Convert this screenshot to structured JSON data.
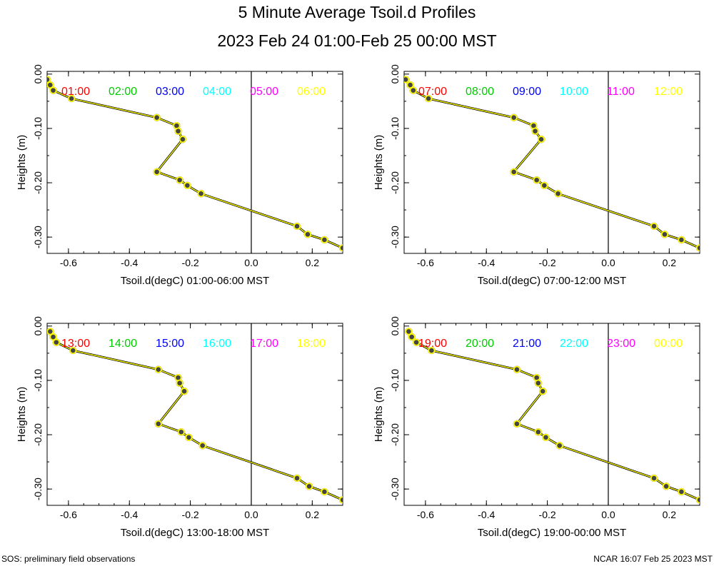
{
  "title": "5 Minute Average Tsoil.d Profiles",
  "subtitle": "2023 Feb 24 01:00-Feb 25 00:00 MST",
  "footer": {
    "left": "SOS: preliminary field observations",
    "right": "NCAR 16:07 Feb 25 2023 MST"
  },
  "colors": {
    "series": [
      "#ff0000",
      "#00cc00",
      "#0000ff",
      "#00ffff",
      "#ff00ff",
      "#ffff00"
    ],
    "marker_fill": "#444444",
    "zero_line": "#000000"
  },
  "chart_data": [
    {
      "type": "line",
      "xlabel": "Tsoil.d(degC) 01:00-06:00 MST",
      "ylabel": "Heights (m)",
      "xlim": [
        -0.67,
        0.3
      ],
      "ylim": [
        -0.33,
        0.005
      ],
      "xticks": [
        "-0.6",
        "-0.4",
        "-0.2",
        "0.0",
        "0.2"
      ],
      "yticks": [
        "0.00",
        "-0.10",
        "-0.20",
        "-0.30"
      ],
      "series": [
        {
          "name": "01:00",
          "x": [
            -0.67,
            -0.66,
            -0.65,
            -0.59,
            -0.31,
            -0.245,
            -0.24,
            -0.225,
            -0.31,
            -0.235,
            -0.21,
            -0.165,
            0.15,
            0.185,
            0.24,
            0.3
          ],
          "y": [
            -0.01,
            -0.02,
            -0.03,
            -0.045,
            -0.08,
            -0.095,
            -0.105,
            -0.12,
            -0.18,
            -0.195,
            -0.205,
            -0.22,
            -0.28,
            -0.295,
            -0.305,
            -0.32
          ]
        },
        {
          "name": "02:00",
          "x": [
            -0.67,
            -0.66,
            -0.65,
            -0.59,
            -0.31,
            -0.245,
            -0.24,
            -0.225,
            -0.31,
            -0.235,
            -0.21,
            -0.165,
            0.15,
            0.185,
            0.24,
            0.3
          ],
          "y": [
            -0.01,
            -0.02,
            -0.03,
            -0.045,
            -0.08,
            -0.095,
            -0.105,
            -0.12,
            -0.18,
            -0.195,
            -0.205,
            -0.22,
            -0.28,
            -0.295,
            -0.305,
            -0.32
          ]
        },
        {
          "name": "03:00",
          "x": [
            -0.67,
            -0.66,
            -0.65,
            -0.59,
            -0.31,
            -0.245,
            -0.24,
            -0.225,
            -0.31,
            -0.235,
            -0.21,
            -0.165,
            0.15,
            0.185,
            0.24,
            0.3
          ],
          "y": [
            -0.01,
            -0.02,
            -0.03,
            -0.045,
            -0.08,
            -0.095,
            -0.105,
            -0.12,
            -0.18,
            -0.195,
            -0.205,
            -0.22,
            -0.28,
            -0.295,
            -0.305,
            -0.32
          ]
        },
        {
          "name": "04:00",
          "x": [
            -0.67,
            -0.66,
            -0.65,
            -0.59,
            -0.31,
            -0.245,
            -0.24,
            -0.225,
            -0.31,
            -0.235,
            -0.21,
            -0.165,
            0.15,
            0.185,
            0.24,
            0.3
          ],
          "y": [
            -0.01,
            -0.02,
            -0.03,
            -0.045,
            -0.08,
            -0.095,
            -0.105,
            -0.12,
            -0.18,
            -0.195,
            -0.205,
            -0.22,
            -0.28,
            -0.295,
            -0.305,
            -0.32
          ]
        },
        {
          "name": "05:00",
          "x": [
            -0.67,
            -0.66,
            -0.65,
            -0.59,
            -0.31,
            -0.245,
            -0.24,
            -0.225,
            -0.31,
            -0.235,
            -0.21,
            -0.165,
            0.15,
            0.185,
            0.24,
            0.3
          ],
          "y": [
            -0.01,
            -0.02,
            -0.03,
            -0.045,
            -0.08,
            -0.095,
            -0.105,
            -0.12,
            -0.18,
            -0.195,
            -0.205,
            -0.22,
            -0.28,
            -0.295,
            -0.305,
            -0.32
          ]
        },
        {
          "name": "06:00",
          "x": [
            -0.67,
            -0.66,
            -0.65,
            -0.59,
            -0.31,
            -0.245,
            -0.24,
            -0.225,
            -0.31,
            -0.235,
            -0.21,
            -0.165,
            0.15,
            0.185,
            0.24,
            0.3
          ],
          "y": [
            -0.01,
            -0.02,
            -0.03,
            -0.045,
            -0.08,
            -0.095,
            -0.105,
            -0.12,
            -0.18,
            -0.195,
            -0.205,
            -0.22,
            -0.28,
            -0.295,
            -0.305,
            -0.32
          ]
        }
      ]
    },
    {
      "type": "line",
      "xlabel": "Tsoil.d(degC) 07:00-12:00 MST",
      "ylabel": "Heights (m)",
      "xlim": [
        -0.67,
        0.3
      ],
      "ylim": [
        -0.33,
        0.005
      ],
      "xticks": [
        "-0.6",
        "-0.4",
        "-0.2",
        "0.0",
        "0.2"
      ],
      "yticks": [
        "0.00",
        "-0.10",
        "-0.20",
        "-0.30"
      ],
      "series": [
        {
          "name": "07:00",
          "x": [
            -0.665,
            -0.65,
            -0.64,
            -0.59,
            -0.31,
            -0.245,
            -0.24,
            -0.22,
            -0.31,
            -0.235,
            -0.21,
            -0.165,
            0.15,
            0.185,
            0.24,
            0.3
          ],
          "y": [
            -0.01,
            -0.02,
            -0.03,
            -0.045,
            -0.08,
            -0.095,
            -0.105,
            -0.12,
            -0.18,
            -0.195,
            -0.205,
            -0.22,
            -0.28,
            -0.295,
            -0.305,
            -0.32
          ]
        },
        {
          "name": "08:00",
          "x": [
            -0.665,
            -0.65,
            -0.64,
            -0.59,
            -0.31,
            -0.245,
            -0.24,
            -0.22,
            -0.31,
            -0.235,
            -0.21,
            -0.165,
            0.15,
            0.185,
            0.24,
            0.3
          ],
          "y": [
            -0.01,
            -0.02,
            -0.03,
            -0.045,
            -0.08,
            -0.095,
            -0.105,
            -0.12,
            -0.18,
            -0.195,
            -0.205,
            -0.22,
            -0.28,
            -0.295,
            -0.305,
            -0.32
          ]
        },
        {
          "name": "09:00",
          "x": [
            -0.665,
            -0.65,
            -0.64,
            -0.59,
            -0.31,
            -0.245,
            -0.24,
            -0.22,
            -0.31,
            -0.235,
            -0.21,
            -0.165,
            0.15,
            0.185,
            0.24,
            0.3
          ],
          "y": [
            -0.01,
            -0.02,
            -0.03,
            -0.045,
            -0.08,
            -0.095,
            -0.105,
            -0.12,
            -0.18,
            -0.195,
            -0.205,
            -0.22,
            -0.28,
            -0.295,
            -0.305,
            -0.32
          ]
        },
        {
          "name": "10:00",
          "x": [
            -0.665,
            -0.65,
            -0.64,
            -0.59,
            -0.31,
            -0.245,
            -0.24,
            -0.22,
            -0.31,
            -0.235,
            -0.21,
            -0.165,
            0.15,
            0.185,
            0.24,
            0.3
          ],
          "y": [
            -0.01,
            -0.02,
            -0.03,
            -0.045,
            -0.08,
            -0.095,
            -0.105,
            -0.12,
            -0.18,
            -0.195,
            -0.205,
            -0.22,
            -0.28,
            -0.295,
            -0.305,
            -0.32
          ]
        },
        {
          "name": "11:00",
          "x": [
            -0.665,
            -0.65,
            -0.64,
            -0.59,
            -0.31,
            -0.245,
            -0.24,
            -0.22,
            -0.31,
            -0.235,
            -0.21,
            -0.165,
            0.15,
            0.185,
            0.24,
            0.3
          ],
          "y": [
            -0.01,
            -0.02,
            -0.03,
            -0.045,
            -0.08,
            -0.095,
            -0.105,
            -0.12,
            -0.18,
            -0.195,
            -0.205,
            -0.22,
            -0.28,
            -0.295,
            -0.305,
            -0.32
          ]
        },
        {
          "name": "12:00",
          "x": [
            -0.665,
            -0.65,
            -0.64,
            -0.59,
            -0.31,
            -0.245,
            -0.24,
            -0.22,
            -0.31,
            -0.235,
            -0.21,
            -0.165,
            0.15,
            0.185,
            0.24,
            0.3
          ],
          "y": [
            -0.01,
            -0.02,
            -0.03,
            -0.045,
            -0.08,
            -0.095,
            -0.105,
            -0.12,
            -0.18,
            -0.195,
            -0.205,
            -0.22,
            -0.28,
            -0.295,
            -0.305,
            -0.32
          ]
        }
      ]
    },
    {
      "type": "line",
      "xlabel": "Tsoil.d(degC) 13:00-18:00 MST",
      "ylabel": "Heights (m)",
      "xlim": [
        -0.67,
        0.3
      ],
      "ylim": [
        -0.33,
        0.005
      ],
      "xticks": [
        "-0.6",
        "-0.4",
        "-0.2",
        "0.0",
        "0.2"
      ],
      "yticks": [
        "0.00",
        "-0.10",
        "-0.20",
        "-0.30"
      ],
      "series": [
        {
          "name": "13:00",
          "x": [
            -0.66,
            -0.65,
            -0.64,
            -0.585,
            -0.305,
            -0.24,
            -0.235,
            -0.22,
            -0.305,
            -0.23,
            -0.205,
            -0.16,
            0.15,
            0.19,
            0.24,
            0.3
          ],
          "y": [
            -0.01,
            -0.02,
            -0.03,
            -0.045,
            -0.08,
            -0.095,
            -0.105,
            -0.12,
            -0.18,
            -0.195,
            -0.205,
            -0.22,
            -0.28,
            -0.295,
            -0.305,
            -0.32
          ]
        },
        {
          "name": "14:00",
          "x": [
            -0.66,
            -0.65,
            -0.64,
            -0.585,
            -0.305,
            -0.24,
            -0.235,
            -0.22,
            -0.305,
            -0.23,
            -0.205,
            -0.16,
            0.15,
            0.19,
            0.24,
            0.3
          ],
          "y": [
            -0.01,
            -0.02,
            -0.03,
            -0.045,
            -0.08,
            -0.095,
            -0.105,
            -0.12,
            -0.18,
            -0.195,
            -0.205,
            -0.22,
            -0.28,
            -0.295,
            -0.305,
            -0.32
          ]
        },
        {
          "name": "15:00",
          "x": [
            -0.66,
            -0.65,
            -0.64,
            -0.585,
            -0.305,
            -0.24,
            -0.235,
            -0.22,
            -0.305,
            -0.23,
            -0.205,
            -0.16,
            0.15,
            0.19,
            0.24,
            0.3
          ],
          "y": [
            -0.01,
            -0.02,
            -0.03,
            -0.045,
            -0.08,
            -0.095,
            -0.105,
            -0.12,
            -0.18,
            -0.195,
            -0.205,
            -0.22,
            -0.28,
            -0.295,
            -0.305,
            -0.32
          ]
        },
        {
          "name": "16:00",
          "x": [
            -0.66,
            -0.65,
            -0.64,
            -0.585,
            -0.305,
            -0.24,
            -0.235,
            -0.22,
            -0.305,
            -0.23,
            -0.205,
            -0.16,
            0.15,
            0.19,
            0.24,
            0.3
          ],
          "y": [
            -0.01,
            -0.02,
            -0.03,
            -0.045,
            -0.08,
            -0.095,
            -0.105,
            -0.12,
            -0.18,
            -0.195,
            -0.205,
            -0.22,
            -0.28,
            -0.295,
            -0.305,
            -0.32
          ]
        },
        {
          "name": "17:00",
          "x": [
            -0.66,
            -0.65,
            -0.64,
            -0.585,
            -0.305,
            -0.24,
            -0.235,
            -0.22,
            -0.305,
            -0.23,
            -0.205,
            -0.16,
            0.15,
            0.19,
            0.24,
            0.3
          ],
          "y": [
            -0.01,
            -0.02,
            -0.03,
            -0.045,
            -0.08,
            -0.095,
            -0.105,
            -0.12,
            -0.18,
            -0.195,
            -0.205,
            -0.22,
            -0.28,
            -0.295,
            -0.305,
            -0.32
          ]
        },
        {
          "name": "18:00",
          "x": [
            -0.66,
            -0.65,
            -0.64,
            -0.585,
            -0.305,
            -0.24,
            -0.235,
            -0.22,
            -0.305,
            -0.23,
            -0.205,
            -0.16,
            0.15,
            0.19,
            0.24,
            0.3
          ],
          "y": [
            -0.01,
            -0.02,
            -0.03,
            -0.045,
            -0.08,
            -0.095,
            -0.105,
            -0.12,
            -0.18,
            -0.195,
            -0.205,
            -0.22,
            -0.28,
            -0.295,
            -0.305,
            -0.32
          ]
        }
      ]
    },
    {
      "type": "line",
      "xlabel": "Tsoil.d(degC) 19:00-00:00 MST",
      "ylabel": "Heights (m)",
      "xlim": [
        -0.67,
        0.3
      ],
      "ylim": [
        -0.33,
        0.005
      ],
      "xticks": [
        "-0.6",
        "-0.4",
        "-0.2",
        "0.0",
        "0.2"
      ],
      "yticks": [
        "0.00",
        "-0.10",
        "-0.20",
        "-0.30"
      ],
      "series": [
        {
          "name": "19:00",
          "x": [
            -0.655,
            -0.645,
            -0.63,
            -0.58,
            -0.3,
            -0.235,
            -0.23,
            -0.215,
            -0.3,
            -0.23,
            -0.205,
            -0.16,
            0.15,
            0.19,
            0.24,
            0.3
          ],
          "y": [
            -0.01,
            -0.02,
            -0.03,
            -0.045,
            -0.08,
            -0.095,
            -0.105,
            -0.12,
            -0.18,
            -0.195,
            -0.205,
            -0.22,
            -0.28,
            -0.295,
            -0.305,
            -0.32
          ]
        },
        {
          "name": "20:00",
          "x": [
            -0.655,
            -0.645,
            -0.63,
            -0.58,
            -0.3,
            -0.235,
            -0.23,
            -0.215,
            -0.3,
            -0.23,
            -0.205,
            -0.16,
            0.15,
            0.19,
            0.24,
            0.3
          ],
          "y": [
            -0.01,
            -0.02,
            -0.03,
            -0.045,
            -0.08,
            -0.095,
            -0.105,
            -0.12,
            -0.18,
            -0.195,
            -0.205,
            -0.22,
            -0.28,
            -0.295,
            -0.305,
            -0.32
          ]
        },
        {
          "name": "21:00",
          "x": [
            -0.655,
            -0.645,
            -0.63,
            -0.58,
            -0.3,
            -0.235,
            -0.23,
            -0.215,
            -0.3,
            -0.23,
            -0.205,
            -0.16,
            0.15,
            0.19,
            0.24,
            0.3
          ],
          "y": [
            -0.01,
            -0.02,
            -0.03,
            -0.045,
            -0.08,
            -0.095,
            -0.105,
            -0.12,
            -0.18,
            -0.195,
            -0.205,
            -0.22,
            -0.28,
            -0.295,
            -0.305,
            -0.32
          ]
        },
        {
          "name": "22:00",
          "x": [
            -0.655,
            -0.645,
            -0.63,
            -0.58,
            -0.3,
            -0.235,
            -0.23,
            -0.215,
            -0.3,
            -0.23,
            -0.205,
            -0.16,
            0.15,
            0.19,
            0.24,
            0.3
          ],
          "y": [
            -0.01,
            -0.02,
            -0.03,
            -0.045,
            -0.08,
            -0.095,
            -0.105,
            -0.12,
            -0.18,
            -0.195,
            -0.205,
            -0.22,
            -0.28,
            -0.295,
            -0.305,
            -0.32
          ]
        },
        {
          "name": "23:00",
          "x": [
            -0.655,
            -0.645,
            -0.63,
            -0.58,
            -0.3,
            -0.235,
            -0.23,
            -0.215,
            -0.3,
            -0.23,
            -0.205,
            -0.16,
            0.15,
            0.19,
            0.24,
            0.3
          ],
          "y": [
            -0.01,
            -0.02,
            -0.03,
            -0.045,
            -0.08,
            -0.095,
            -0.105,
            -0.12,
            -0.18,
            -0.195,
            -0.205,
            -0.22,
            -0.28,
            -0.295,
            -0.305,
            -0.32
          ]
        },
        {
          "name": "00:00",
          "x": [
            -0.655,
            -0.645,
            -0.63,
            -0.58,
            -0.3,
            -0.235,
            -0.23,
            -0.215,
            -0.3,
            -0.23,
            -0.205,
            -0.16,
            0.15,
            0.19,
            0.24,
            0.3
          ],
          "y": [
            -0.01,
            -0.02,
            -0.03,
            -0.045,
            -0.08,
            -0.095,
            -0.105,
            -0.12,
            -0.18,
            -0.195,
            -0.205,
            -0.22,
            -0.28,
            -0.295,
            -0.305,
            -0.32
          ]
        }
      ]
    }
  ]
}
